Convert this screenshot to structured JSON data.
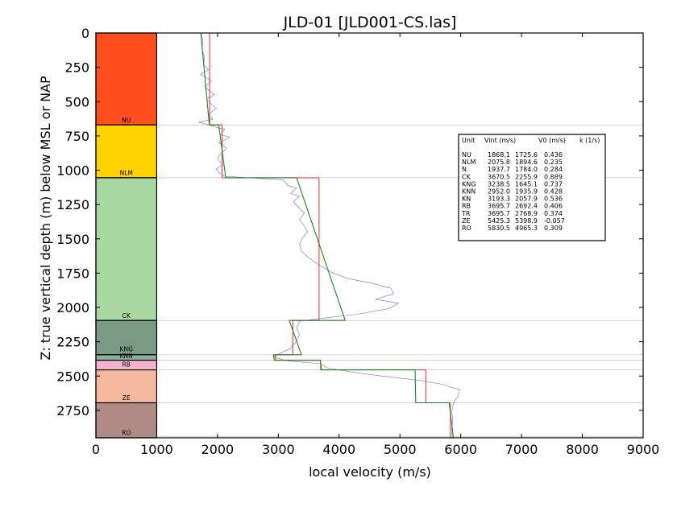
{
  "chart_data": {
    "type": "line",
    "title": "JLD-01 [JLD001-CS.las]",
    "xlabel": "local velocity (m/s)",
    "ylabel": "Z: true vertical depth (m) below MSL or NAP",
    "xlim": [
      0,
      9000
    ],
    "ylim": [
      2950,
      0
    ],
    "x_ticks": [
      0,
      1000,
      2000,
      3000,
      4000,
      5000,
      6000,
      7000,
      8000,
      9000
    ],
    "y_ticks": [
      0,
      250,
      500,
      750,
      1000,
      1250,
      1500,
      1750,
      2000,
      2250,
      2500,
      2750
    ],
    "units": [
      {
        "name": "NU",
        "top": 0,
        "base": 670,
        "color": "#ff4f1f",
        "label": "NU"
      },
      {
        "name": "NLM",
        "top": 670,
        "base": 1055,
        "color": "#ffd200",
        "label": "NLM"
      },
      {
        "name": "CK",
        "top": 1055,
        "base": 2095,
        "color": "#a8d8a0",
        "label": "CK"
      },
      {
        "name": "KNG",
        "top": 2095,
        "base": 2345,
        "color": "#7a9a86",
        "label": "KNG"
      },
      {
        "name": "KNN",
        "top": 2345,
        "base": 2385,
        "color": "#8ab09a",
        "label": "KNN"
      },
      {
        "name": "RB",
        "top": 2385,
        "base": 2455,
        "color": "#f4b4d0",
        "label": "RB"
      },
      {
        "name": "ZE",
        "top": 2455,
        "base": 2695,
        "color": "#f4b8a0",
        "label": "ZE"
      },
      {
        "name": "RO",
        "top": 2695,
        "base": 2950,
        "color": "#b08a86",
        "label": "RO"
      }
    ],
    "unit_label_depths": [
      650,
      1035,
      2075,
      2320,
      2368,
      2430,
      2675,
      2930
    ],
    "boundaries": [
      670,
      1055,
      2095,
      2345,
      2385,
      2455,
      2695,
      2940
    ],
    "series": [
      {
        "color": "#ff3b3b",
        "points": [
          [
            1870,
            0
          ],
          [
            1870,
            670
          ],
          [
            2076,
            670
          ],
          [
            2076,
            1055
          ],
          [
            3670,
            1055
          ],
          [
            3670,
            2095
          ],
          [
            3240,
            2095
          ],
          [
            3240,
            2345
          ],
          [
            2950,
            2345
          ],
          [
            2950,
            2385
          ],
          [
            3695,
            2385
          ],
          [
            3695,
            2455
          ],
          [
            5425,
            2455
          ],
          [
            5425,
            2695
          ],
          [
            5830,
            2695
          ],
          [
            5830,
            2950
          ]
        ]
      },
      {
        "color": "#1a8a1a",
        "points": [
          [
            1726,
            0
          ],
          [
            1865,
            670
          ],
          [
            2020,
            670
          ],
          [
            2135,
            1055
          ],
          [
            3300,
            1055
          ],
          [
            4100,
            2095
          ],
          [
            3180,
            2095
          ],
          [
            3380,
            2345
          ],
          [
            2920,
            2345
          ],
          [
            2935,
            2385
          ],
          [
            3690,
            2385
          ],
          [
            3710,
            2455
          ],
          [
            5250,
            2455
          ],
          [
            5260,
            2695
          ],
          [
            5810,
            2695
          ],
          [
            5880,
            2950
          ]
        ]
      },
      {
        "color": "#6a6aff",
        "points": [
          [
            1730,
            0
          ],
          [
            1760,
            60
          ],
          [
            1745,
            120
          ],
          [
            1790,
            180
          ],
          [
            1770,
            230
          ],
          [
            1850,
            270
          ],
          [
            1720,
            300
          ],
          [
            1830,
            330
          ],
          [
            1900,
            350
          ],
          [
            1790,
            390
          ],
          [
            1860,
            420
          ],
          [
            1950,
            450
          ],
          [
            1820,
            480
          ],
          [
            1880,
            510
          ],
          [
            1980,
            550
          ],
          [
            1850,
            590
          ],
          [
            1920,
            630
          ],
          [
            1690,
            650
          ],
          [
            1860,
            670
          ],
          [
            2000,
            690
          ],
          [
            2120,
            700
          ],
          [
            2050,
            740
          ],
          [
            2200,
            760
          ],
          [
            2020,
            800
          ],
          [
            2150,
            840
          ],
          [
            2050,
            880
          ],
          [
            2000,
            920
          ],
          [
            2090,
            960
          ],
          [
            1980,
            990
          ],
          [
            2030,
            1020
          ],
          [
            2130,
            1045
          ],
          [
            3080,
            1070
          ],
          [
            3150,
            1110
          ],
          [
            3300,
            1130
          ],
          [
            3200,
            1170
          ],
          [
            3350,
            1190
          ],
          [
            3250,
            1230
          ],
          [
            3330,
            1270
          ],
          [
            3430,
            1310
          ],
          [
            3350,
            1360
          ],
          [
            3420,
            1400
          ],
          [
            3480,
            1450
          ],
          [
            3400,
            1490
          ],
          [
            3350,
            1540
          ],
          [
            3380,
            1590
          ],
          [
            3480,
            1630
          ],
          [
            3600,
            1670
          ],
          [
            3750,
            1710
          ],
          [
            3900,
            1750
          ],
          [
            4150,
            1790
          ],
          [
            4500,
            1820
          ],
          [
            4850,
            1860
          ],
          [
            4900,
            1900
          ],
          [
            4600,
            1940
          ],
          [
            4980,
            1970
          ],
          [
            4800,
            2010
          ],
          [
            4300,
            2050
          ],
          [
            3700,
            2080
          ],
          [
            3350,
            2100
          ],
          [
            3300,
            2150
          ],
          [
            3350,
            2200
          ],
          [
            3290,
            2250
          ],
          [
            3200,
            2300
          ],
          [
            3050,
            2330
          ],
          [
            2920,
            2360
          ],
          [
            3150,
            2390
          ],
          [
            3700,
            2410
          ],
          [
            3800,
            2440
          ],
          [
            4200,
            2470
          ],
          [
            4700,
            2500
          ],
          [
            5300,
            2530
          ],
          [
            5700,
            2560
          ],
          [
            5980,
            2600
          ],
          [
            5950,
            2650
          ],
          [
            5880,
            2700
          ],
          [
            5850,
            2760
          ],
          [
            5870,
            2820
          ],
          [
            5850,
            2880
          ],
          [
            5860,
            2950
          ]
        ]
      }
    ],
    "legend": {
      "placement": "right",
      "header": [
        "Unit",
        "Vint (m/s)",
        "V0 (m/s)",
        "k (1/s)"
      ],
      "rows": [
        [
          "NU",
          "1868.1",
          "1725.6",
          "0.436"
        ],
        [
          "NLM",
          "2075.8",
          "1894.6",
          "0.235"
        ],
        [
          "N",
          "1937.7",
          "1784.0",
          "0.284"
        ],
        [
          "CK",
          "3670.5",
          "2255.9",
          "0.889"
        ],
        [
          "KNG",
          "3238.5",
          "1645.1",
          "0.737"
        ],
        [
          "KNN",
          "2952.0",
          "1935.9",
          "0.428"
        ],
        [
          "KN",
          "3193.3",
          "2057.9",
          "0.536"
        ],
        [
          "RB",
          "3695.7",
          "2692.4",
          "0.406"
        ],
        [
          "TR",
          "3695.7",
          "2768.9",
          "0.374"
        ],
        [
          "ZE",
          "5425.3",
          "5398.9",
          "-0.057"
        ],
        [
          "RO",
          "5830.5",
          "4965.3",
          "0.309"
        ]
      ]
    }
  }
}
